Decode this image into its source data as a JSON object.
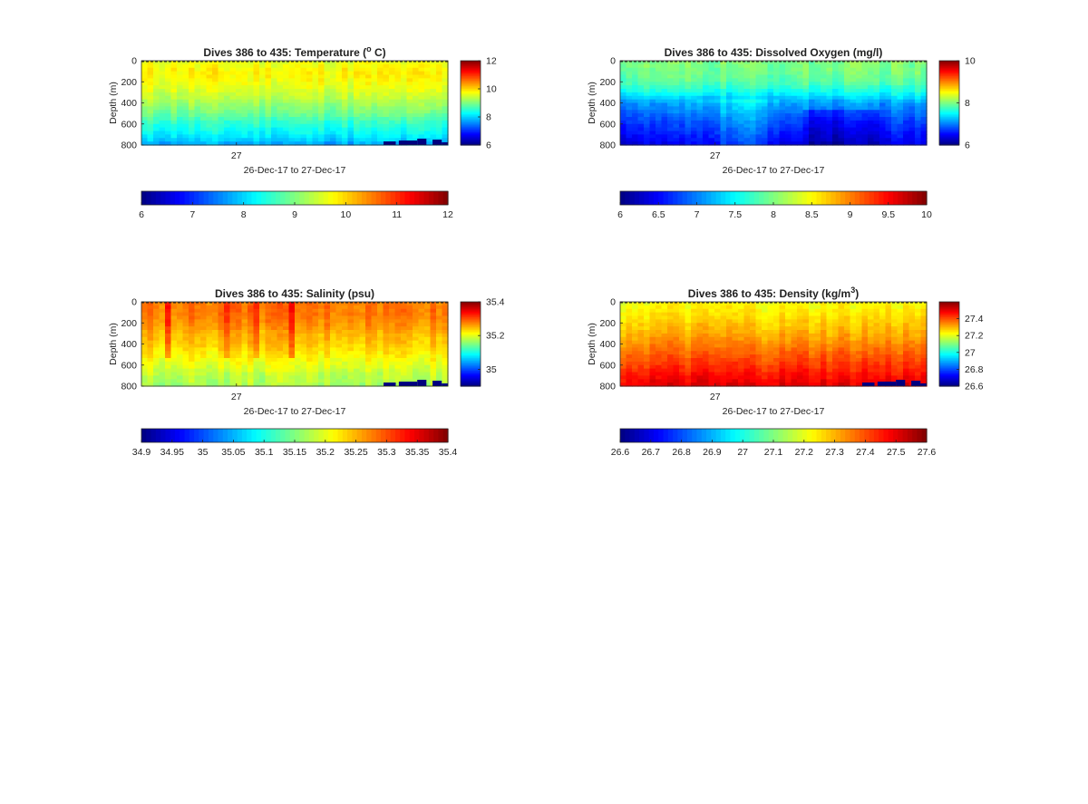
{
  "chart_data": [
    {
      "type": "heatmap",
      "title": "Dives 386 to 435: Temperature (",
      "title_sup": "o",
      "title_end": " C)",
      "xlabel": "26-Dec-17 to 27-Dec-17",
      "ylabel": "Depth (m)",
      "ylim": [
        800,
        0
      ],
      "y_ticks": [
        0,
        200,
        400,
        600,
        800
      ],
      "x_ticks": [
        "27"
      ],
      "clim": [
        6,
        12
      ],
      "colorbar_ticks": [
        6,
        8,
        10,
        12
      ],
      "hcolorbar_ticks": [
        6,
        7,
        8,
        9,
        10,
        11,
        12
      ],
      "colormap": "jet",
      "profile_depth": [
        0,
        100,
        200,
        300,
        400,
        500,
        600,
        700,
        800
      ],
      "profile_values": [
        9.6,
        9.8,
        9.7,
        9.5,
        9.2,
        8.9,
        8.5,
        8.2,
        7.7
      ],
      "dashed_surface": true,
      "bottom_patches": true
    },
    {
      "type": "heatmap",
      "title": "Dives 386 to 435: Dissolved Oxygen (mg/l)",
      "xlabel": "26-Dec-17 to 27-Dec-17",
      "ylabel": "Depth (m)",
      "ylim": [
        800,
        0
      ],
      "y_ticks": [
        0,
        200,
        400,
        600,
        800
      ],
      "x_ticks": [
        "27"
      ],
      "clim": [
        6,
        10
      ],
      "colorbar_ticks": [
        6,
        8,
        10
      ],
      "hcolorbar_ticks": [
        6,
        6.5,
        7,
        7.5,
        8,
        8.5,
        9,
        9.5,
        10
      ],
      "colormap": "jet",
      "profile_depth": [
        0,
        100,
        200,
        300,
        400,
        500,
        600,
        700,
        800
      ],
      "profile_values": [
        8.0,
        7.95,
        7.85,
        7.55,
        7.1,
        6.9,
        6.7,
        6.55,
        6.4
      ],
      "dashed_surface": true,
      "bottom_patches": false
    },
    {
      "type": "heatmap",
      "title": "Dives 386 to 435: Salinity (psu)",
      "xlabel": "26-Dec-17 to 27-Dec-17",
      "ylabel": "Depth (m)",
      "ylim": [
        800,
        0
      ],
      "y_ticks": [
        0,
        200,
        400,
        600,
        800
      ],
      "x_ticks": [
        "27"
      ],
      "clim": [
        34.9,
        35.4
      ],
      "colorbar_ticks": [
        35,
        35.2,
        35.4
      ],
      "hcolorbar_ticks": [
        34.9,
        34.95,
        35,
        35.05,
        35.1,
        35.15,
        35.2,
        35.25,
        35.3,
        35.35,
        35.4
      ],
      "colormap": "jet",
      "profile_depth": [
        0,
        100,
        200,
        300,
        400,
        500,
        600,
        700,
        800
      ],
      "profile_values": [
        35.28,
        35.28,
        35.27,
        35.25,
        35.24,
        35.22,
        35.2,
        35.18,
        35.17
      ],
      "dashed_surface": true,
      "bottom_patches": true
    },
    {
      "type": "heatmap",
      "title": "Dives 386 to 435: Density (kg/m",
      "title_sup": "3",
      "title_end": ")",
      "xlabel": "26-Dec-17 to 27-Dec-17",
      "ylabel": "Depth (m)",
      "ylim": [
        800,
        0
      ],
      "y_ticks": [
        0,
        200,
        400,
        600,
        800
      ],
      "x_ticks": [
        "27"
      ],
      "clim": [
        26.6,
        27.6
      ],
      "colorbar_ticks": [
        26.6,
        26.8,
        27,
        27.2,
        27.4
      ],
      "hcolorbar_ticks": [
        26.6,
        26.7,
        26.8,
        26.9,
        27,
        27.1,
        27.2,
        27.3,
        27.4,
        27.5,
        27.6
      ],
      "colormap": "jet",
      "profile_depth": [
        0,
        100,
        200,
        300,
        400,
        500,
        600,
        700,
        800
      ],
      "profile_values": [
        27.22,
        27.24,
        27.27,
        27.3,
        27.34,
        27.38,
        27.42,
        27.46,
        27.5
      ],
      "dashed_surface": true,
      "bottom_patches": true
    }
  ]
}
